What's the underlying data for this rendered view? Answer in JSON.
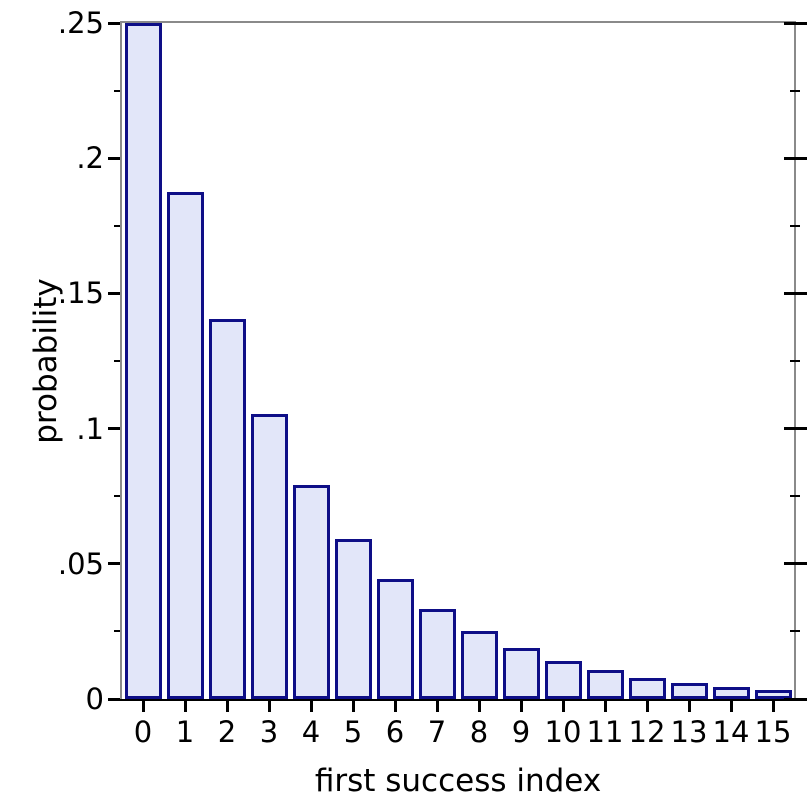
{
  "figure": {
    "background": "#ffffff"
  },
  "chart_data": {
    "type": "bar",
    "title": "",
    "xlabel": "first success index",
    "ylabel": "probability",
    "categories": [
      "0",
      "1",
      "2",
      "3",
      "4",
      "5",
      "6",
      "7",
      "8",
      "9",
      "10",
      "11",
      "12",
      "13",
      "14",
      "15"
    ],
    "values": [
      0.25,
      0.1875,
      0.140625,
      0.10546875,
      0.07910156,
      0.05932617,
      0.04449463,
      0.03337097,
      0.02502823,
      0.01877117,
      0.01407838,
      0.01055878,
      0.00791909,
      0.00593932,
      0.00445449,
      0.00334087
    ],
    "ylim": [
      0,
      0.25
    ],
    "yticks": [
      {
        "value": 0,
        "label": "0"
      },
      {
        "value": 0.05,
        "label": ".05"
      },
      {
        "value": 0.1,
        "label": ".1"
      },
      {
        "value": 0.15,
        "label": ".15"
      },
      {
        "value": 0.2,
        "label": ".2"
      },
      {
        "value": 0.25,
        "label": ".25"
      }
    ],
    "yminor_step": 0.025,
    "grid": false,
    "legend": "none",
    "colors": {
      "bar_fill": "#e2e6f9",
      "bar_border": "#0e0e87",
      "frame": "#8a8a8a",
      "axis_line": "#000000",
      "tick": "#000000",
      "text": "#000000"
    }
  }
}
